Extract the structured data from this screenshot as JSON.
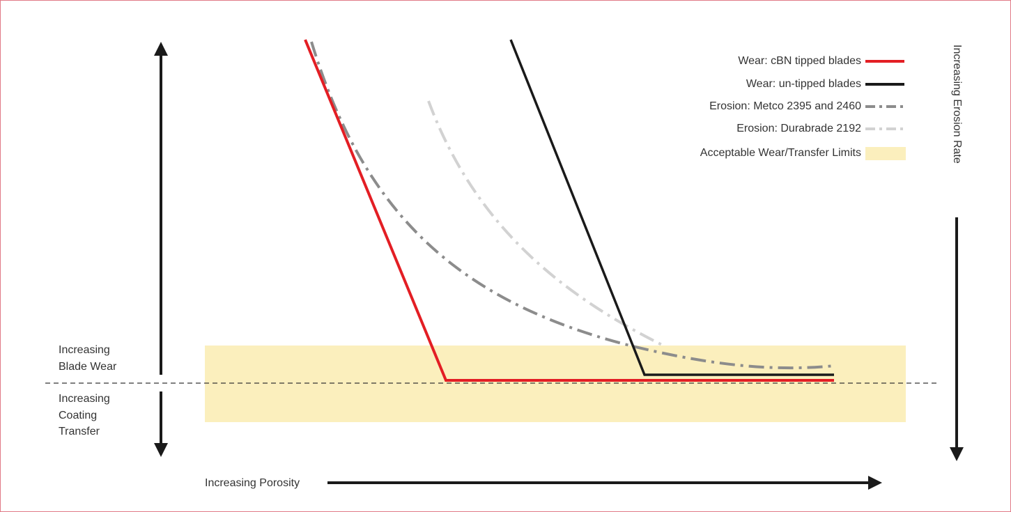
{
  "legend": [
    "Wear: cBN tipped blades",
    "Wear: un-tipped blades",
    "Erosion: Metco 2395 and 2460",
    "Erosion: Durabrade 2192",
    "Acceptable Wear/Transfer Limits"
  ],
  "left_labels": {
    "blade_wear": [
      "Increasing",
      "Blade Wear"
    ],
    "coating_transfer": [
      "Increasing",
      "Coating",
      "Transfer"
    ]
  },
  "x_axis_label": "Increasing Porosity",
  "right_axis_label": "Increasing Erosion Rate"
}
